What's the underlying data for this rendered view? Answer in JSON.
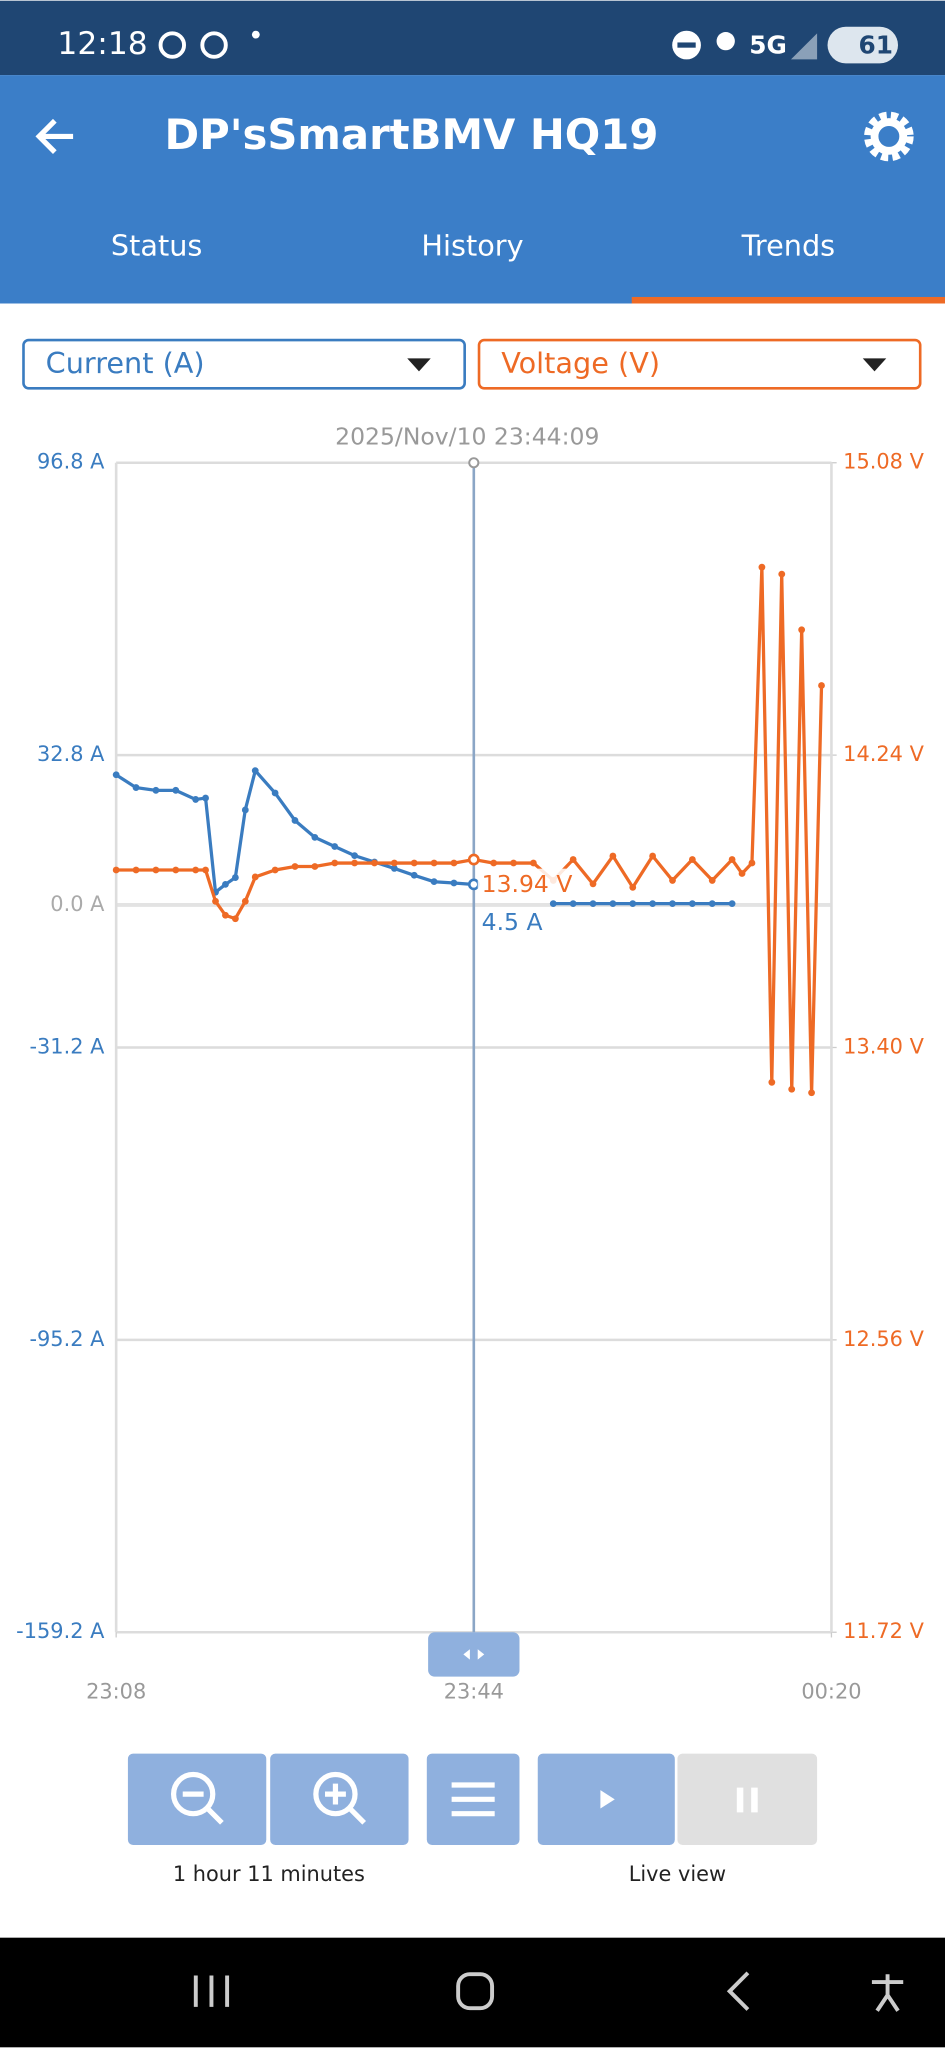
{
  "status_bar": {
    "time": "12:18",
    "network": "5G",
    "battery": "61"
  },
  "app_bar": {
    "title": "DP'sSmartBMV HQ19"
  },
  "tabs": [
    "Status",
    "History",
    "Trends"
  ],
  "controls": {
    "zoom_label": "1 hour 11 minutes",
    "live_label": "Live view"
  },
  "chart_data": {
    "type": "line",
    "x": [
      1388,
      1390,
      1392,
      1394,
      1396,
      1397,
      1398,
      1399,
      1400,
      1401,
      1402,
      1404,
      1406,
      1408,
      1410,
      1412,
      1414,
      1416,
      1418,
      1420,
      1422,
      1424,
      1426,
      1428,
      1430,
      1432,
      1434,
      1436,
      1438,
      1440,
      1442,
      1444,
      1446,
      1448,
      1450,
      1451,
      1452,
      1453,
      1454,
      1455,
      1456,
      1457,
      1458,
      1459
    ],
    "xlim": [
      1388,
      1460
    ],
    "xticks": [
      {
        "value": 1388,
        "label": "23:08"
      },
      {
        "value": 1424,
        "label": "23:44"
      },
      {
        "value": 1460,
        "label": "00:20"
      }
    ],
    "ylim": [
      -159.2,
      96.8
    ],
    "yticks": [
      {
        "value": 96.8,
        "label": "96.8 A"
      },
      {
        "value": 32.8,
        "label": "32.8 A"
      },
      {
        "value": 0,
        "label": "0.0 A"
      },
      {
        "value": -31.2,
        "label": "-31.2 A"
      },
      {
        "value": -95.2,
        "label": "-95.2 A"
      },
      {
        "value": -159.2,
        "label": "-159.2 A"
      }
    ],
    "y2lim": [
      11.72,
      15.08
    ],
    "y2ticks": [
      {
        "value": 15.08,
        "label": "15.08 V"
      },
      {
        "value": 14.24,
        "label": "14.24 V"
      },
      {
        "value": 13.4,
        "label": "13.40 V"
      },
      {
        "value": 12.56,
        "label": "12.56 V"
      },
      {
        "value": 11.72,
        "label": "11.72 V"
      }
    ],
    "grid": true,
    "series": [
      {
        "name": "Current (A)",
        "color": "#3a7cc0",
        "values": [
          28.5,
          25.7,
          25.1,
          25.1,
          23.1,
          23.4,
          2.8,
          4.5,
          6.0,
          20.8,
          29.4,
          24.5,
          18.5,
          14.8,
          12.8,
          10.8,
          9.4,
          8.0,
          6.5,
          5.1,
          4.8,
          4.5,
          null,
          null,
          null,
          0.3,
          0.3,
          0.3,
          0.3,
          0.3,
          0.3,
          0.3,
          0.3,
          0.3,
          0.3,
          null,
          null,
          null,
          null,
          null,
          null,
          null,
          null,
          null
        ]
      },
      {
        "name": "Voltage (V)",
        "color": "#ee6a25",
        "axis": "y2",
        "values": [
          13.91,
          13.91,
          13.91,
          13.91,
          13.91,
          13.91,
          13.82,
          13.78,
          13.77,
          13.82,
          13.89,
          13.91,
          13.92,
          13.92,
          13.93,
          13.93,
          13.93,
          13.93,
          13.93,
          13.93,
          13.93,
          13.94,
          13.93,
          13.93,
          13.93,
          13.88,
          13.94,
          13.87,
          13.95,
          13.86,
          13.95,
          13.88,
          13.94,
          13.88,
          13.94,
          13.9,
          13.93,
          14.78,
          13.3,
          14.76,
          13.28,
          14.6,
          13.27,
          14.44
        ]
      }
    ],
    "cursor": {
      "label": "2025/Nov/10 23:44:09",
      "x": 1424,
      "value_labels": [
        "4.5 A",
        "13.94 V"
      ]
    }
  }
}
